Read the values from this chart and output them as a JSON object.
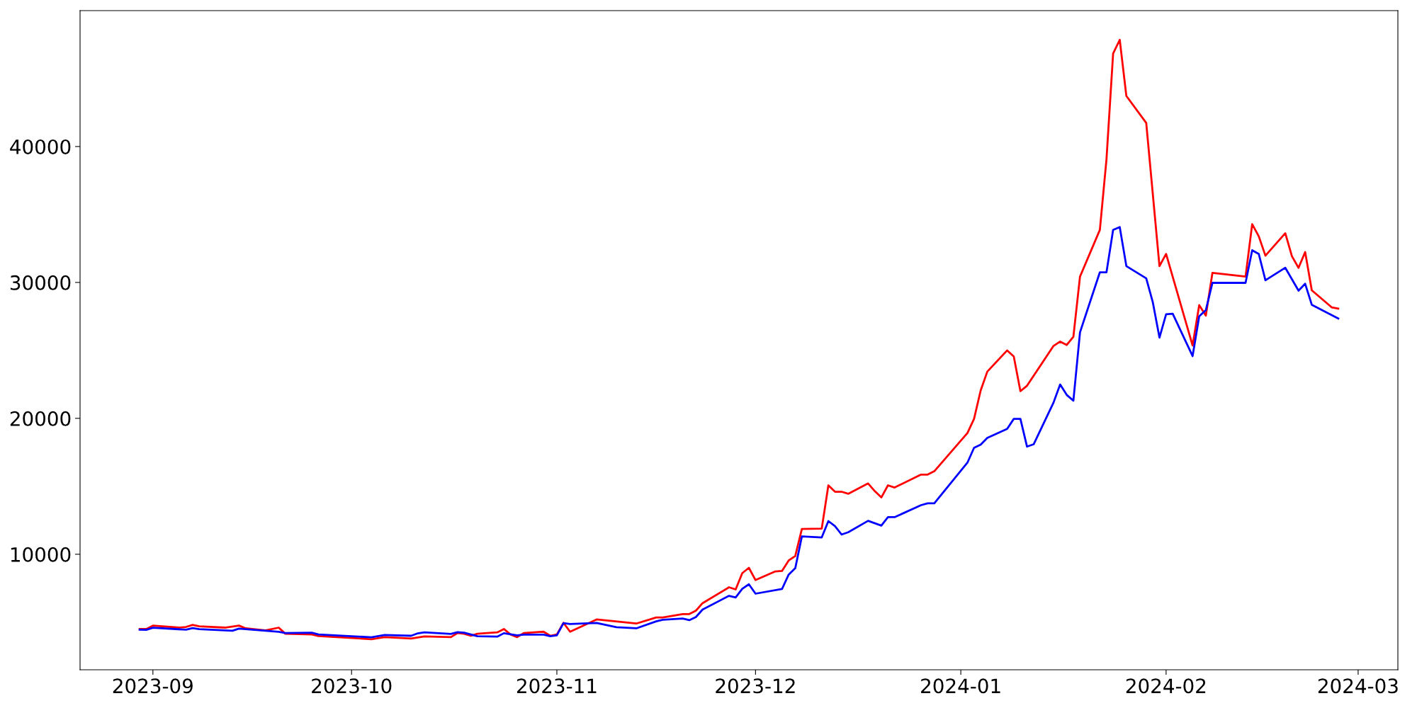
{
  "chart_data": {
    "type": "line",
    "xlim": [
      "2023-08-21",
      "2024-03-07"
    ],
    "xticks": [
      "2023-09",
      "2023-10",
      "2023-11",
      "2023-12",
      "2024-01",
      "2024-02",
      "2024-03"
    ],
    "ylim": [
      1500,
      50000
    ],
    "yticks": [
      10000,
      20000,
      30000,
      40000
    ],
    "grid": false,
    "marker": "none",
    "line_style": "solid",
    "series": [
      {
        "color": "#ff0000",
        "x": [
          "2023-08-30",
          "2023-08-31",
          "2023-09-01",
          "2023-09-05",
          "2023-09-06",
          "2023-09-07",
          "2023-09-08",
          "2023-09-12",
          "2023-09-14",
          "2023-09-15",
          "2023-09-18",
          "2023-09-20",
          "2023-09-21",
          "2023-09-25",
          "2023-09-26",
          "2023-10-04",
          "2023-10-06",
          "2023-10-10",
          "2023-10-12",
          "2023-10-16",
          "2023-10-17",
          "2023-10-18",
          "2023-10-19",
          "2023-10-20",
          "2023-10-23",
          "2023-10-24",
          "2023-10-25",
          "2023-10-26",
          "2023-10-27",
          "2023-10-30",
          "2023-10-31",
          "2023-11-01",
          "2023-11-02",
          "2023-11-03",
          "2023-11-07",
          "2023-11-13",
          "2023-11-16",
          "2023-11-17",
          "2023-11-20",
          "2023-11-21",
          "2023-11-22",
          "2023-11-23",
          "2023-11-27",
          "2023-11-28",
          "2023-11-29",
          "2023-11-30",
          "2023-12-01",
          "2023-12-04",
          "2023-12-05",
          "2023-12-06",
          "2023-12-07",
          "2023-12-08",
          "2023-12-11",
          "2023-12-12",
          "2023-12-13",
          "2023-12-14",
          "2023-12-15",
          "2023-12-18",
          "2023-12-19",
          "2023-12-20",
          "2023-12-21",
          "2023-12-22",
          "2023-12-26",
          "2023-12-27",
          "2023-12-28",
          "2024-01-02",
          "2024-01-03",
          "2024-01-04",
          "2024-01-05",
          "2024-01-08",
          "2024-01-09",
          "2024-01-10",
          "2024-01-11",
          "2024-01-15",
          "2024-01-16",
          "2024-01-17",
          "2024-01-18",
          "2024-01-19",
          "2024-01-22",
          "2024-01-23",
          "2024-01-24",
          "2024-01-25",
          "2024-01-26",
          "2024-01-29",
          "2024-01-31",
          "2024-02-01",
          "2024-02-05",
          "2024-02-06",
          "2024-02-07",
          "2024-02-08",
          "2024-02-13",
          "2024-02-14",
          "2024-02-15",
          "2024-02-16",
          "2024-02-19",
          "2024-02-20",
          "2024-02-21",
          "2024-02-22",
          "2024-02-23",
          "2024-02-26",
          "2024-02-27"
        ],
        "values": [
          4500,
          4500,
          4750,
          4600,
          4650,
          4800,
          4700,
          4600,
          4750,
          4550,
          4400,
          4600,
          4150,
          4100,
          3980,
          3750,
          3900,
          3800,
          3950,
          3900,
          4200,
          4150,
          4000,
          4150,
          4250,
          4500,
          4100,
          3900,
          4200,
          4300,
          4000,
          4100,
          4950,
          4300,
          5200,
          4900,
          5350,
          5350,
          5600,
          5600,
          5850,
          6400,
          7570,
          7410,
          8610,
          9000,
          8100,
          8740,
          8770,
          9540,
          9870,
          11860,
          11890,
          15070,
          14600,
          14600,
          14450,
          15210,
          14650,
          14180,
          15070,
          14910,
          15860,
          15860,
          16110,
          18920,
          19960,
          22050,
          23440,
          25000,
          24550,
          22000,
          22400,
          25330,
          25650,
          25400,
          26000,
          30430,
          33870,
          39070,
          46840,
          47850,
          43720,
          41740,
          31200,
          32100,
          25360,
          28330,
          27560,
          30710,
          30430,
          34290,
          33390,
          31970,
          33620,
          31930,
          31080,
          32240,
          29420,
          28170,
          28080
        ]
      },
      {
        "color": "#0000ff",
        "x": [
          "2023-08-30",
          "2023-08-31",
          "2023-09-01",
          "2023-09-06",
          "2023-09-07",
          "2023-09-08",
          "2023-09-13",
          "2023-09-14",
          "2023-09-20",
          "2023-09-21",
          "2023-09-25",
          "2023-09-26",
          "2023-10-04",
          "2023-10-06",
          "2023-10-10",
          "2023-10-11",
          "2023-10-12",
          "2023-10-16",
          "2023-10-17",
          "2023-10-18",
          "2023-10-20",
          "2023-10-23",
          "2023-10-24",
          "2023-10-26",
          "2023-10-27",
          "2023-10-30",
          "2023-10-31",
          "2023-11-01",
          "2023-11-02",
          "2023-11-03",
          "2023-11-07",
          "2023-11-10",
          "2023-11-13",
          "2023-11-16",
          "2023-11-17",
          "2023-11-20",
          "2023-11-21",
          "2023-11-22",
          "2023-11-23",
          "2023-11-27",
          "2023-11-28",
          "2023-11-29",
          "2023-11-30",
          "2023-12-01",
          "2023-12-05",
          "2023-12-06",
          "2023-12-07",
          "2023-12-08",
          "2023-12-11",
          "2023-12-12",
          "2023-12-13",
          "2023-12-14",
          "2023-12-15",
          "2023-12-18",
          "2023-12-20",
          "2023-12-21",
          "2023-12-22",
          "2023-12-26",
          "2023-12-27",
          "2023-12-28",
          "2024-01-02",
          "2024-01-03",
          "2024-01-04",
          "2024-01-05",
          "2024-01-08",
          "2024-01-09",
          "2024-01-10",
          "2024-01-11",
          "2024-01-12",
          "2024-01-15",
          "2024-01-16",
          "2024-01-17",
          "2024-01-18",
          "2024-01-19",
          "2024-01-22",
          "2024-01-23",
          "2024-01-24",
          "2024-01-25",
          "2024-01-26",
          "2024-01-29",
          "2024-01-30",
          "2024-01-31",
          "2024-02-01",
          "2024-02-02",
          "2024-02-05",
          "2024-02-06",
          "2024-02-07",
          "2024-02-08",
          "2024-02-13",
          "2024-02-14",
          "2024-02-15",
          "2024-02-16",
          "2024-02-19",
          "2024-02-21",
          "2024-02-22",
          "2024-02-23",
          "2024-02-27"
        ],
        "values": [
          4450,
          4440,
          4590,
          4450,
          4570,
          4490,
          4370,
          4530,
          4290,
          4200,
          4230,
          4100,
          3890,
          4060,
          4000,
          4180,
          4250,
          4140,
          4270,
          4230,
          3970,
          3940,
          4190,
          4030,
          4090,
          4090,
          3970,
          4030,
          4930,
          4870,
          4940,
          4630,
          4550,
          5060,
          5180,
          5270,
          5150,
          5380,
          5930,
          6940,
          6820,
          7460,
          7790,
          7100,
          7440,
          8500,
          8970,
          11310,
          11240,
          12440,
          12070,
          11450,
          11620,
          12460,
          12110,
          12730,
          12730,
          13610,
          13750,
          13750,
          16740,
          17830,
          18070,
          18560,
          19230,
          19960,
          19960,
          17920,
          18090,
          21160,
          22490,
          21720,
          21300,
          26330,
          30750,
          30750,
          33860,
          34070,
          31200,
          30300,
          28530,
          25940,
          27660,
          27700,
          24580,
          27510,
          27960,
          29970,
          29970,
          32370,
          32090,
          30160,
          31080,
          29400,
          29900,
          28360,
          27350
        ]
      }
    ]
  }
}
